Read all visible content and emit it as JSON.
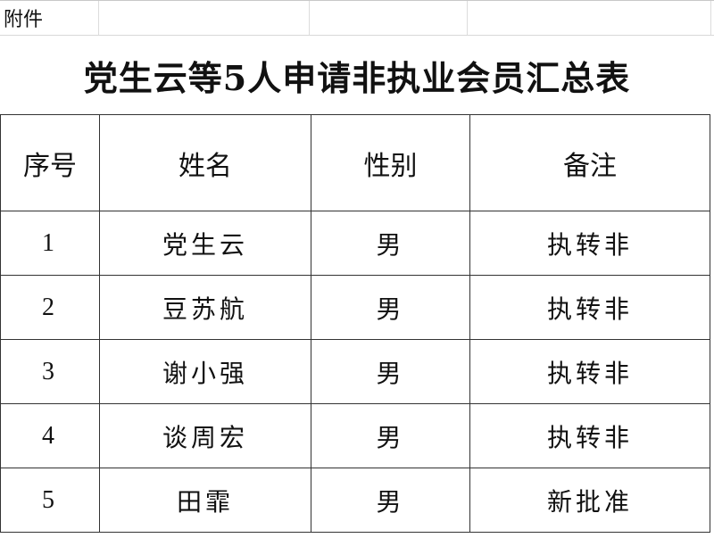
{
  "attachment_label": "附件",
  "title": "党生云等5人申请非执业会员汇总表",
  "table": {
    "headers": [
      "序号",
      "姓名",
      "性别",
      "备注"
    ],
    "rows": [
      {
        "no": "1",
        "name": "党生云",
        "gender": "男",
        "note": "执转非"
      },
      {
        "no": "2",
        "name": "豆苏航",
        "gender": "男",
        "note": "执转非"
      },
      {
        "no": "3",
        "name": "谢小强",
        "gender": "男",
        "note": "执转非"
      },
      {
        "no": "4",
        "name": "谈周宏",
        "gender": "男",
        "note": "执转非"
      },
      {
        "no": "5",
        "name": "田霏",
        "gender": "男",
        "note": "新批准"
      }
    ]
  }
}
